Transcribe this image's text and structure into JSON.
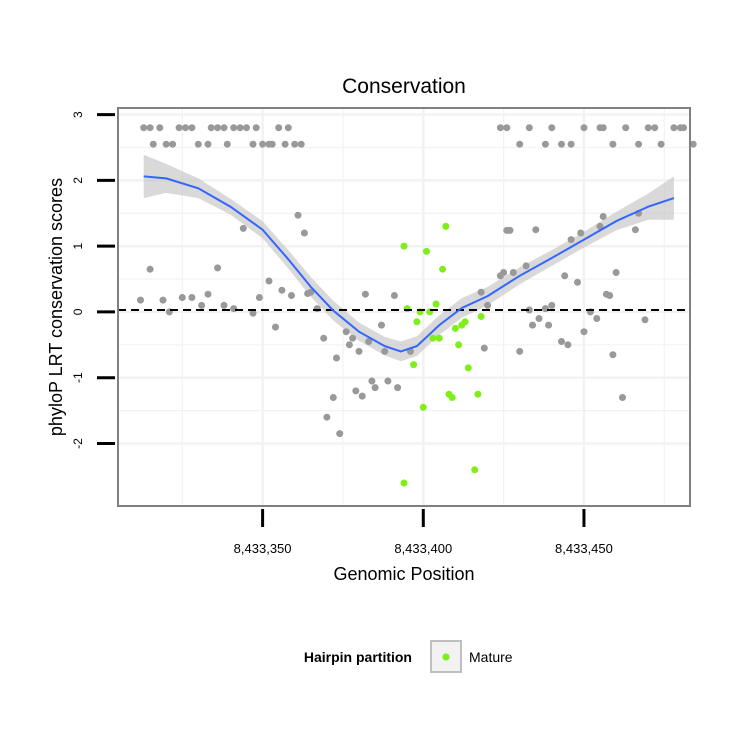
{
  "chart_data": {
    "type": "scatter",
    "title": "Conservation",
    "xlabel": "Genomic Position",
    "ylabel": "phyloP LRT conservation scores",
    "xlim": [
      8433305,
      8433483
    ],
    "ylim": [
      -2.95,
      3.1
    ],
    "x_ticks": [
      {
        "value": 8433350,
        "label": "8,433,350"
      },
      {
        "value": 8433400,
        "label": "8,433,400"
      },
      {
        "value": 8433450,
        "label": "8,433,450"
      }
    ],
    "y_ticks": [
      {
        "value": -2,
        "label": "-2"
      },
      {
        "value": -1,
        "label": "-1"
      },
      {
        "value": 0,
        "label": "0"
      },
      {
        "value": 1,
        "label": "1"
      },
      {
        "value": 2,
        "label": "2"
      },
      {
        "value": 3,
        "label": "3"
      }
    ],
    "reference_line": {
      "y": 0.03,
      "style": "dashed"
    },
    "colors": {
      "other": "#999999",
      "mature": "#7FEE1A",
      "smooth": "#3366FF",
      "band": "#BFBFBF",
      "panel_border": "#808080",
      "grid": "#F2F2F2"
    },
    "legend": {
      "title": "Hairpin partition",
      "entries": [
        {
          "label": "Mature",
          "color": "#7FEE1A"
        }
      ],
      "position": "bottom"
    },
    "series": [
      {
        "name": "Other",
        "color": "#999999",
        "points": [
          [
            8433313,
            2.8
          ],
          [
            8433315,
            2.8
          ],
          [
            8433318,
            2.8
          ],
          [
            8433316,
            2.55
          ],
          [
            8433320,
            2.55
          ],
          [
            8433322,
            2.55
          ],
          [
            8433324,
            2.8
          ],
          [
            8433326,
            2.8
          ],
          [
            8433328,
            2.8
          ],
          [
            8433330,
            2.55
          ],
          [
            8433333,
            2.55
          ],
          [
            8433334,
            2.8
          ],
          [
            8433336,
            2.8
          ],
          [
            8433338,
            2.8
          ],
          [
            8433339,
            2.55
          ],
          [
            8433341,
            2.8
          ],
          [
            8433343,
            2.8
          ],
          [
            8433345,
            2.8
          ],
          [
            8433347,
            2.55
          ],
          [
            8433348,
            2.8
          ],
          [
            8433350,
            2.55
          ],
          [
            8433352,
            2.55
          ],
          [
            8433353,
            2.55
          ],
          [
            8433355,
            2.8
          ],
          [
            8433357,
            2.55
          ],
          [
            8433358,
            2.8
          ],
          [
            8433360,
            2.55
          ],
          [
            8433362,
            2.55
          ],
          [
            8433424,
            2.8
          ],
          [
            8433426,
            2.8
          ],
          [
            8433430,
            2.55
          ],
          [
            8433433,
            2.8
          ],
          [
            8433438,
            2.55
          ],
          [
            8433440,
            2.8
          ],
          [
            8433443,
            2.55
          ],
          [
            8433446,
            2.55
          ],
          [
            8433450,
            2.8
          ],
          [
            8433455,
            2.8
          ],
          [
            8433456,
            2.8
          ],
          [
            8433459,
            2.55
          ],
          [
            8433463,
            2.8
          ],
          [
            8433467,
            2.55
          ],
          [
            8433470,
            2.8
          ],
          [
            8433472,
            2.8
          ],
          [
            8433474,
            2.55
          ],
          [
            8433478,
            2.8
          ],
          [
            8433481,
            2.8
          ],
          [
            8433484,
            2.55
          ],
          [
            8433480,
            2.8
          ],
          [
            8433312,
            0.18
          ],
          [
            8433315,
            0.65
          ],
          [
            8433319,
            0.18
          ],
          [
            8433321,
            0.0
          ],
          [
            8433325,
            0.22
          ],
          [
            8433328,
            0.22
          ],
          [
            8433331,
            0.1
          ],
          [
            8433333,
            0.27
          ],
          [
            8433336,
            0.67
          ],
          [
            8433338,
            0.1
          ],
          [
            8433341,
            0.05
          ],
          [
            8433344,
            1.27
          ],
          [
            8433347,
            -0.02
          ],
          [
            8433349,
            0.22
          ],
          [
            8433352,
            0.47
          ],
          [
            8433354,
            -0.23
          ],
          [
            8433356,
            0.33
          ],
          [
            8433359,
            0.25
          ],
          [
            8433361,
            1.47
          ],
          [
            8433363,
            1.2
          ],
          [
            8433364,
            0.28
          ],
          [
            8433365,
            0.3
          ],
          [
            8433367,
            0.05
          ],
          [
            8433369,
            -0.4
          ],
          [
            8433370,
            -1.6
          ],
          [
            8433372,
            -1.3
          ],
          [
            8433373,
            -0.7
          ],
          [
            8433374,
            -1.85
          ],
          [
            8433376,
            -0.3
          ],
          [
            8433377,
            -0.5
          ],
          [
            8433378,
            -0.4
          ],
          [
            8433379,
            -1.2
          ],
          [
            8433380,
            -0.6
          ],
          [
            8433381,
            -1.28
          ],
          [
            8433382,
            0.27
          ],
          [
            8433383,
            -0.45
          ],
          [
            8433384,
            -1.05
          ],
          [
            8433385,
            -1.15
          ],
          [
            8433387,
            -0.2
          ],
          [
            8433388,
            -0.6
          ],
          [
            8433389,
            -1.05
          ],
          [
            8433391,
            0.25
          ],
          [
            8433392,
            -1.15
          ],
          [
            8433396,
            -0.6
          ],
          [
            8433418,
            0.3
          ],
          [
            8433419,
            -0.55
          ],
          [
            8433420,
            0.1
          ],
          [
            8433424,
            0.55
          ],
          [
            8433425,
            0.6
          ],
          [
            8433426,
            1.24
          ],
          [
            8433427,
            1.24
          ],
          [
            8433428,
            0.6
          ],
          [
            8433430,
            -0.6
          ],
          [
            8433432,
            0.7
          ],
          [
            8433433,
            0.03
          ],
          [
            8433434,
            -0.2
          ],
          [
            8433435,
            1.25
          ],
          [
            8433436,
            -0.1
          ],
          [
            8433438,
            0.05
          ],
          [
            8433439,
            -0.2
          ],
          [
            8433440,
            0.1
          ],
          [
            8433443,
            -0.45
          ],
          [
            8433444,
            0.55
          ],
          [
            8433445,
            -0.5
          ],
          [
            8433446,
            1.1
          ],
          [
            8433448,
            0.45
          ],
          [
            8433449,
            1.2
          ],
          [
            8433450,
            -0.3
          ],
          [
            8433452,
            0.0
          ],
          [
            8433454,
            -0.1
          ],
          [
            8433456,
            1.45
          ],
          [
            8433457,
            0.27
          ],
          [
            8433458,
            0.25
          ],
          [
            8433459,
            -0.65
          ],
          [
            8433460,
            0.6
          ],
          [
            8433462,
            -1.3
          ],
          [
            8433466,
            1.25
          ],
          [
            8433467,
            1.5
          ],
          [
            8433469,
            -0.12
          ],
          [
            8433455,
            1.3
          ]
        ]
      },
      {
        "name": "Mature",
        "color": "#7FEE1A",
        "points": [
          [
            8433394,
            1.0
          ],
          [
            8433394,
            -2.6
          ],
          [
            8433395,
            0.05
          ],
          [
            8433397,
            -0.8
          ],
          [
            8433398,
            -0.15
          ],
          [
            8433399,
            0.0
          ],
          [
            8433400,
            -1.45
          ],
          [
            8433401,
            0.92
          ],
          [
            8433402,
            0.0
          ],
          [
            8433403,
            -0.4
          ],
          [
            8433404,
            0.12
          ],
          [
            8433405,
            -0.4
          ],
          [
            8433406,
            0.65
          ],
          [
            8433407,
            1.3
          ],
          [
            8433408,
            -1.25
          ],
          [
            8433409,
            -1.3
          ],
          [
            8433410,
            -0.25
          ],
          [
            8433411,
            -0.5
          ],
          [
            8433412,
            -0.2
          ],
          [
            8433413,
            -0.15
          ],
          [
            8433414,
            -0.85
          ],
          [
            8433416,
            -2.4
          ],
          [
            8433417,
            -1.25
          ],
          [
            8433418,
            -0.07
          ]
        ]
      }
    ],
    "smooth": {
      "name": "Loess fit",
      "color": "#3366FF",
      "points": [
        [
          8433313,
          2.06
        ],
        [
          8433320,
          2.03
        ],
        [
          8433330,
          1.88
        ],
        [
          8433340,
          1.6
        ],
        [
          8433350,
          1.25
        ],
        [
          8433358,
          0.8
        ],
        [
          8433365,
          0.38
        ],
        [
          8433372,
          0.02
        ],
        [
          8433380,
          -0.3
        ],
        [
          8433388,
          -0.52
        ],
        [
          8433393,
          -0.6
        ],
        [
          8433398,
          -0.52
        ],
        [
          8433405,
          -0.2
        ],
        [
          8433412,
          0.06
        ],
        [
          8433420,
          0.24
        ],
        [
          8433430,
          0.55
        ],
        [
          8433440,
          0.82
        ],
        [
          8433450,
          1.1
        ],
        [
          8433460,
          1.38
        ],
        [
          8433470,
          1.6
        ],
        [
          8433478,
          1.73
        ]
      ],
      "band_halfwidth": [
        0.33,
        0.22,
        0.15,
        0.12,
        0.13,
        0.14,
        0.15,
        0.15,
        0.14,
        0.14,
        0.15,
        0.15,
        0.15,
        0.15,
        0.14,
        0.13,
        0.12,
        0.12,
        0.14,
        0.2,
        0.33
      ]
    }
  }
}
